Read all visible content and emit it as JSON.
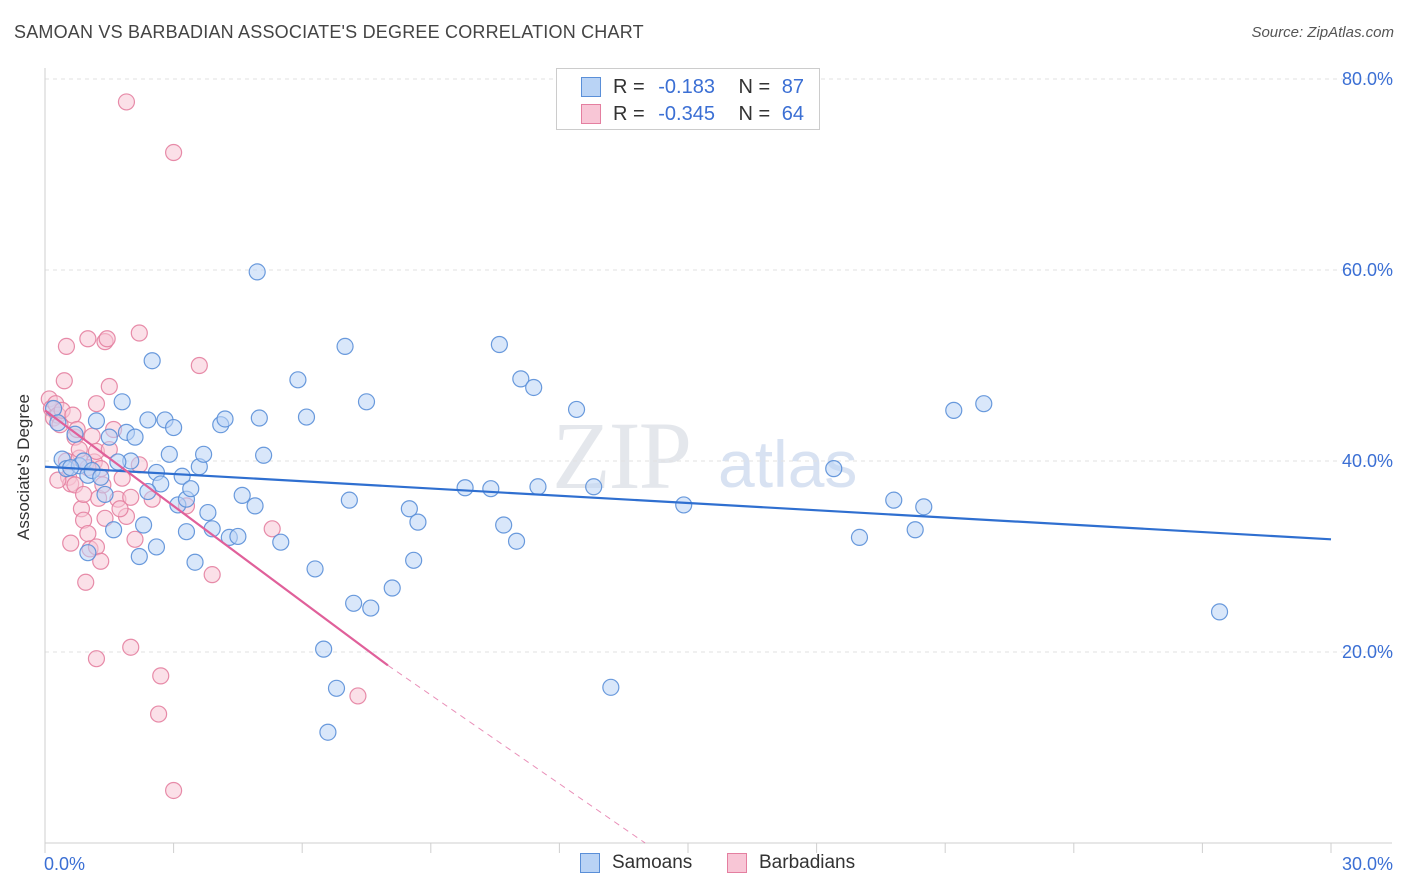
{
  "title": "SAMOAN VS BARBADIAN ASSOCIATE'S DEGREE CORRELATION CHART",
  "source": "Source: ZipAtlas.com",
  "watermark": {
    "zip": "ZIP",
    "atlas": "atlas"
  },
  "colors": {
    "samoan_fill": "#b9d3f5",
    "samoan_stroke": "#5a8fd8",
    "samoan_line": "#2f6fd0",
    "barbadian_fill": "#f8c6d6",
    "barbadian_stroke": "#e47fa0",
    "barbadian_line": "#e0609a",
    "axis_text": "#3b6fd4",
    "grid": "#e2e2e2"
  },
  "legend_top": {
    "rows": [
      {
        "r_label": "R =",
        "r_value": "-0.183",
        "n_label": "N =",
        "n_value": "87"
      },
      {
        "r_label": "R =",
        "r_value": "-0.345",
        "n_label": "N =",
        "n_value": "64"
      }
    ]
  },
  "legend_bottom": {
    "items": [
      {
        "label": "Samoans"
      },
      {
        "label": "Barbadians"
      }
    ]
  },
  "chart_data": {
    "type": "scatter",
    "title": "SAMOAN VS BARBADIAN ASSOCIATE'S DEGREE CORRELATION CHART",
    "xlabel": "",
    "ylabel": "Associate's Degree",
    "xlim": [
      0,
      30
    ],
    "ylim": [
      0,
      80
    ],
    "x_tick_labels": [
      "0.0%",
      "30.0%"
    ],
    "y_tick_labels": [
      "20.0%",
      "40.0%",
      "60.0%",
      "80.0%"
    ],
    "y_ticks": [
      20,
      40,
      60,
      80
    ],
    "grid": true,
    "legend_position": "bottom",
    "series": [
      {
        "name": "Samoans",
        "r": -0.183,
        "n": 87,
        "trend": {
          "x0": 0,
          "y0": 39.4,
          "x1": 30,
          "y1": 31.8
        },
        "points": [
          [
            0.2,
            45.5
          ],
          [
            0.3,
            44.0
          ],
          [
            0.4,
            40.2
          ],
          [
            0.5,
            39.2
          ],
          [
            0.7,
            42.8
          ],
          [
            0.8,
            39.5
          ],
          [
            0.9,
            40.0
          ],
          [
            1.0,
            38.5
          ],
          [
            1.1,
            39.0
          ],
          [
            1.2,
            44.2
          ],
          [
            1.3,
            38.3
          ],
          [
            1.4,
            36.5
          ],
          [
            1.5,
            42.5
          ],
          [
            1.6,
            32.8
          ],
          [
            1.8,
            46.2
          ],
          [
            1.9,
            43.0
          ],
          [
            2.0,
            40.0
          ],
          [
            2.1,
            42.5
          ],
          [
            2.2,
            30.0
          ],
          [
            2.3,
            33.3
          ],
          [
            2.4,
            44.3
          ],
          [
            2.5,
            50.5
          ],
          [
            2.6,
            38.8
          ],
          [
            2.7,
            37.6
          ],
          [
            2.8,
            44.3
          ],
          [
            2.9,
            40.7
          ],
          [
            3.0,
            43.5
          ],
          [
            3.1,
            35.4
          ],
          [
            3.2,
            38.4
          ],
          [
            3.3,
            36.0
          ],
          [
            3.4,
            37.1
          ],
          [
            3.5,
            29.4
          ],
          [
            3.6,
            39.4
          ],
          [
            3.7,
            40.7
          ],
          [
            3.8,
            34.6
          ],
          [
            3.9,
            32.9
          ],
          [
            4.1,
            43.8
          ],
          [
            4.2,
            44.4
          ],
          [
            4.3,
            32.0
          ],
          [
            4.5,
            32.1
          ],
          [
            4.6,
            36.4
          ],
          [
            4.9,
            35.3
          ],
          [
            5.0,
            44.5
          ],
          [
            5.1,
            40.6
          ],
          [
            5.9,
            48.5
          ],
          [
            6.1,
            44.6
          ],
          [
            7.0,
            52.0
          ],
          [
            7.1,
            35.9
          ],
          [
            7.5,
            46.2
          ],
          [
            8.5,
            35.0
          ],
          [
            8.7,
            33.6
          ],
          [
            4.95,
            59.8
          ],
          [
            9.8,
            37.2
          ],
          [
            10.4,
            37.1
          ],
          [
            10.6,
            52.2
          ],
          [
            10.7,
            33.3
          ],
          [
            11.1,
            48.6
          ],
          [
            11.4,
            47.7
          ],
          [
            11.5,
            37.3
          ],
          [
            12.4,
            45.4
          ],
          [
            12.8,
            37.3
          ],
          [
            14.9,
            35.4
          ],
          [
            18.4,
            39.2
          ],
          [
            19.0,
            32.0
          ],
          [
            19.8,
            35.9
          ],
          [
            20.3,
            32.8
          ],
          [
            20.5,
            35.2
          ],
          [
            21.2,
            45.3
          ],
          [
            21.9,
            46.0
          ],
          [
            27.4,
            24.2
          ],
          [
            7.6,
            24.6
          ],
          [
            7.2,
            25.1
          ],
          [
            8.1,
            26.7
          ],
          [
            6.3,
            28.7
          ],
          [
            8.6,
            29.6
          ],
          [
            11.0,
            31.6
          ],
          [
            6.6,
            11.6
          ],
          [
            13.2,
            16.3
          ],
          [
            6.8,
            16.2
          ],
          [
            6.5,
            20.3
          ],
          [
            2.4,
            36.8
          ],
          [
            1.7,
            39.9
          ],
          [
            0.6,
            39.3
          ],
          [
            2.6,
            31.0
          ],
          [
            3.3,
            32.6
          ],
          [
            1.0,
            30.4
          ],
          [
            5.5,
            31.5
          ]
        ]
      },
      {
        "name": "Barbadians",
        "r": -0.345,
        "n": 64,
        "trend": {
          "x0": 0,
          "y0": 45.3,
          "x1": 8.0,
          "y1": 18.6
        },
        "trend_dashed": {
          "x0": 8.0,
          "y0": 18.6,
          "x1": 14.0,
          "y1": -1.4
        },
        "points": [
          [
            0.1,
            46.5
          ],
          [
            0.15,
            45.5
          ],
          [
            0.2,
            44.5
          ],
          [
            0.25,
            46.0
          ],
          [
            0.3,
            44.8
          ],
          [
            0.35,
            43.8
          ],
          [
            0.4,
            45.3
          ],
          [
            0.45,
            48.4
          ],
          [
            0.5,
            40.0
          ],
          [
            0.55,
            38.3
          ],
          [
            0.6,
            37.6
          ],
          [
            0.65,
            44.8
          ],
          [
            0.7,
            42.5
          ],
          [
            0.75,
            43.3
          ],
          [
            0.8,
            40.3
          ],
          [
            0.85,
            35.0
          ],
          [
            0.9,
            33.8
          ],
          [
            0.95,
            27.3
          ],
          [
            1.0,
            32.4
          ],
          [
            1.05,
            30.8
          ],
          [
            1.1,
            42.6
          ],
          [
            1.15,
            39.9
          ],
          [
            1.2,
            41.0
          ],
          [
            1.25,
            36.1
          ],
          [
            1.3,
            39.2
          ],
          [
            1.35,
            37.5
          ],
          [
            1.4,
            34.0
          ],
          [
            1.5,
            41.2
          ],
          [
            1.6,
            43.3
          ],
          [
            1.7,
            36.0
          ],
          [
            1.8,
            38.2
          ],
          [
            1.9,
            34.2
          ],
          [
            2.0,
            36.2
          ],
          [
            2.1,
            31.8
          ],
          [
            2.2,
            39.6
          ],
          [
            0.5,
            52.0
          ],
          [
            1.0,
            52.8
          ],
          [
            1.4,
            52.5
          ],
          [
            1.45,
            52.8
          ],
          [
            2.2,
            53.4
          ],
          [
            1.5,
            47.8
          ],
          [
            3.6,
            50.0
          ],
          [
            1.2,
            46.0
          ],
          [
            1.9,
            77.6
          ],
          [
            3.0,
            72.3
          ],
          [
            0.6,
            31.4
          ],
          [
            1.2,
            31.0
          ],
          [
            1.3,
            29.5
          ],
          [
            3.3,
            35.3
          ],
          [
            3.9,
            28.1
          ],
          [
            5.3,
            32.9
          ],
          [
            1.2,
            19.3
          ],
          [
            2.0,
            20.5
          ],
          [
            2.7,
            17.5
          ],
          [
            2.65,
            13.5
          ],
          [
            3.0,
            5.5
          ],
          [
            7.3,
            15.4
          ],
          [
            0.3,
            38.0
          ],
          [
            0.7,
            37.5
          ],
          [
            0.9,
            36.5
          ],
          [
            1.75,
            35.0
          ],
          [
            2.5,
            36.0
          ],
          [
            0.8,
            41.2
          ],
          [
            1.0,
            39.3
          ]
        ]
      }
    ]
  }
}
